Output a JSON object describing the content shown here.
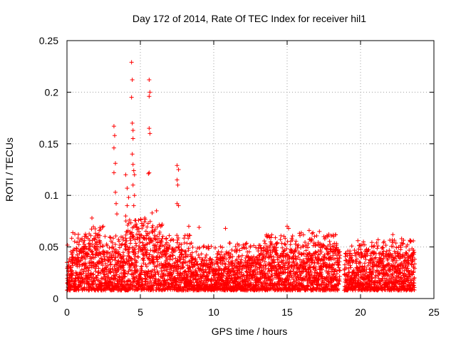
{
  "chart_data": {
    "type": "scatter",
    "title": "Day 172 of 2014, Rate Of TEC Index for receiver hil1",
    "xlabel": "GPS time / hours",
    "ylabel": "ROTI / TECUs",
    "xlim": [
      0,
      25
    ],
    "ylim": [
      0,
      0.25
    ],
    "x_ticks": [
      0,
      5,
      10,
      15,
      20,
      25
    ],
    "x_tick_labels": [
      "0",
      "5",
      "10",
      "15",
      "20",
      "25"
    ],
    "y_ticks": [
      0,
      0.05,
      0.1,
      0.15,
      0.2,
      0.25
    ],
    "y_tick_labels": [
      "0",
      "0.05",
      "0.1",
      "0.15",
      "0.2",
      "0.25"
    ],
    "grid": true,
    "marker": "+",
    "color": "#ff0000",
    "data_gap": [
      18.6,
      18.9
    ],
    "x_range_data": [
      0,
      23.7
    ],
    "series": [
      {
        "name": "ROTI",
        "points": [
          [
            3.2,
            0.167
          ],
          [
            3.25,
            0.158
          ],
          [
            3.2,
            0.146
          ],
          [
            3.3,
            0.131
          ],
          [
            3.2,
            0.122
          ],
          [
            3.3,
            0.103
          ],
          [
            3.35,
            0.092
          ],
          [
            3.4,
            0.082
          ],
          [
            4.0,
            0.12
          ],
          [
            4.1,
            0.107
          ],
          [
            4.2,
            0.098
          ],
          [
            4.1,
            0.09
          ],
          [
            4.0,
            0.08
          ],
          [
            4.4,
            0.229
          ],
          [
            4.45,
            0.212
          ],
          [
            4.4,
            0.195
          ],
          [
            4.45,
            0.17
          ],
          [
            4.5,
            0.163
          ],
          [
            4.5,
            0.155
          ],
          [
            4.45,
            0.14
          ],
          [
            4.5,
            0.13
          ],
          [
            4.55,
            0.124
          ],
          [
            4.6,
            0.12
          ],
          [
            4.5,
            0.11
          ],
          [
            4.6,
            0.1
          ],
          [
            4.55,
            0.09
          ],
          [
            5.6,
            0.212
          ],
          [
            5.65,
            0.2
          ],
          [
            5.6,
            0.196
          ],
          [
            5.6,
            0.165
          ],
          [
            5.65,
            0.16
          ],
          [
            5.6,
            0.122
          ],
          [
            5.55,
            0.121
          ],
          [
            6.1,
            0.085
          ],
          [
            5.8,
            0.083
          ],
          [
            5.3,
            0.078
          ],
          [
            7.5,
            0.129
          ],
          [
            7.6,
            0.125
          ],
          [
            7.5,
            0.115
          ],
          [
            7.55,
            0.11
          ],
          [
            7.5,
            0.092
          ],
          [
            7.6,
            0.09
          ],
          [
            1.7,
            0.078
          ],
          [
            2.3,
            0.067
          ],
          [
            8.3,
            0.07
          ],
          [
            9.0,
            0.069
          ],
          [
            10.8,
            0.068
          ],
          [
            14.2,
            0.059
          ],
          [
            15.0,
            0.07
          ],
          [
            15.1,
            0.068
          ],
          [
            16.5,
            0.066
          ],
          [
            16.7,
            0.063
          ],
          [
            17.2,
            0.065
          ],
          [
            17.5,
            0.06
          ],
          [
            20.2,
            0.055
          ],
          [
            21.2,
            0.057
          ],
          [
            22.2,
            0.062
          ],
          [
            22.8,
            0.058
          ],
          [
            23.2,
            0.052
          ]
        ]
      }
    ]
  }
}
